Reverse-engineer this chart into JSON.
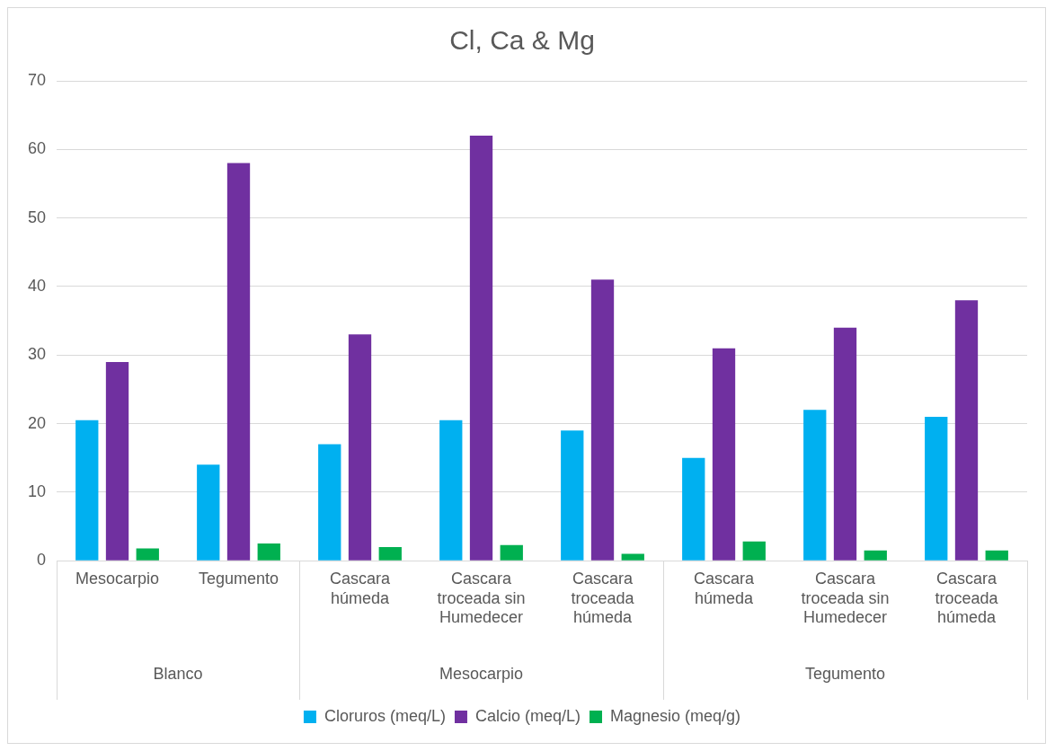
{
  "chart_data": {
    "type": "bar",
    "title": "Cl, Ca & Mg",
    "categories": [
      "Mesocarpio",
      "Tegumento",
      "Cascara húmeda",
      "Cascara troceada sin Humedecer",
      "Cascara troceada húmeda",
      "Cascara húmeda",
      "Cascara troceada sin Humedecer",
      "Cascara troceada húmeda"
    ],
    "series": [
      {
        "name": "Cloruros (meq/L)",
        "color": "#00b0f0",
        "values": [
          20.5,
          14,
          17,
          20.5,
          19,
          15,
          22,
          21
        ]
      },
      {
        "name": "Calcio (meq/L)",
        "color": "#7030a0",
        "values": [
          29,
          58,
          33,
          62,
          41,
          31,
          34,
          38
        ]
      },
      {
        "name": "Magnesio (meq/g)",
        "color": "#00b050",
        "values": [
          1.8,
          2.5,
          2,
          2.3,
          1,
          2.8,
          1.5,
          1.5
        ]
      }
    ],
    "annotations": [
      "Blanco",
      "Mesocarpio",
      "Tegumento"
    ],
    "ylim": [
      0,
      70
    ],
    "yticks": [
      0,
      10,
      20,
      30,
      40,
      50,
      60,
      70
    ],
    "grid": "y",
    "legend": "bottom"
  }
}
